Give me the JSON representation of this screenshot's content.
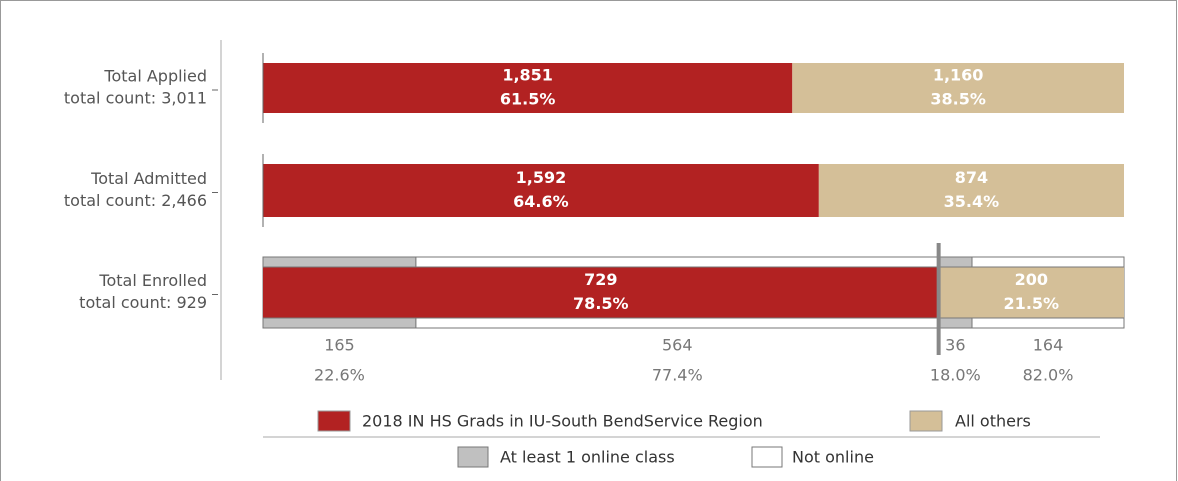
{
  "chart_data": {
    "type": "bar",
    "orientation": "horizontal",
    "stacked": true,
    "categories": [
      "Total Applied",
      "Total Admitted",
      "Total Enrolled"
    ],
    "category_subtitles": [
      "total count: 3,011",
      "total count: 2,466",
      "total count: 929"
    ],
    "series": [
      {
        "name": "2018 IN HS Grads in IU-South BendService Region",
        "color": "#b22222",
        "values": [
          1851,
          1592,
          729
        ],
        "value_labels": [
          "1,851",
          "1,592",
          "729"
        ],
        "percent_labels": [
          "61.5%",
          "64.6%",
          "78.5%"
        ]
      },
      {
        "name": "All others",
        "color": "#d4bf98",
        "values": [
          1160,
          874,
          200
        ],
        "value_labels": [
          "1,160",
          "874",
          "200"
        ],
        "percent_labels": [
          "38.5%",
          "35.4%",
          "21.5%"
        ]
      }
    ],
    "breakdown": {
      "category": "Total Enrolled",
      "series": [
        {
          "name": "At least 1 online class",
          "color": "#c0c0c0",
          "values": [
            165,
            36
          ],
          "percent_labels": [
            "22.6%",
            "18.0%"
          ]
        },
        {
          "name": "Not online",
          "color": "#ffffff",
          "values": [
            564,
            164
          ],
          "percent_labels": [
            "77.4%",
            "82.0%"
          ]
        }
      ]
    }
  }
}
